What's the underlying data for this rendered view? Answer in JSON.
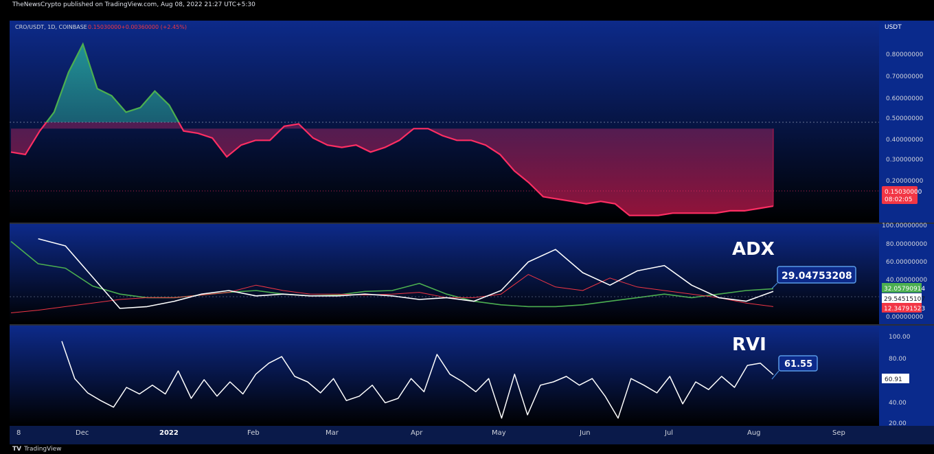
{
  "header": {
    "published": "TheNewsCrypto published on TradingView.com, Aug 08, 2022 21:27 UTC+5:30",
    "symbol": "CRO/USDT, 1D, COINBASE",
    "price": "0.15030000",
    "change": "+0.00360000 (+2.45%)",
    "currency": "USDT"
  },
  "footer": {
    "brand": "TradingView",
    "logo": "TV"
  },
  "colors": {
    "green": "#4caf50",
    "red": "#f23645",
    "pink": "#ff2e63",
    "white": "#ffffff",
    "panel_top": "#0d2a8a",
    "panel_bottom": "#000000",
    "axis_text": "#d1d4dc"
  },
  "chart_data": [
    {
      "type": "area",
      "panel": "price",
      "baseline": 0.48,
      "yticks": [
        "0.80000000",
        "0.70000000",
        "0.60000000",
        "0.50000000",
        "0.40000000",
        "0.30000000",
        "0.20000000"
      ],
      "ylim": [
        0.08,
        0.94
      ],
      "last_price_label": "0.15030000",
      "countdown_label": "08:02:05",
      "x": [
        "Nov 8",
        "Nov 15",
        "Nov 20",
        "Nov 24",
        "Nov 28",
        "Dec 1",
        "Dec 5",
        "Dec 10",
        "Dec 15",
        "Dec 20",
        "Dec 25",
        "Dec 30",
        "Jan 2",
        "Jan 7",
        "Jan 12",
        "Jan 18",
        "Jan 22",
        "Jan 25",
        "Feb 1",
        "Feb 7",
        "Feb 10",
        "Feb 15",
        "Feb 20",
        "Feb 25",
        "Mar 1",
        "Mar 8",
        "Mar 15",
        "Mar 22",
        "Mar 28",
        "Apr 1",
        "Apr 5",
        "Apr 10",
        "Apr 15",
        "Apr 20",
        "Apr 25",
        "May 1",
        "May 5",
        "May 9",
        "May 12",
        "May 16",
        "May 22",
        "May 28",
        "Jun 5",
        "Jun 10",
        "Jun 13",
        "Jun 18",
        "Jun 25",
        "Jul 1",
        "Jul 10",
        "Jul 20",
        "Jul 27",
        "Aug 1",
        "Aug 5",
        "Aug 8"
      ],
      "values": [
        0.38,
        0.37,
        0.47,
        0.55,
        0.72,
        0.84,
        0.65,
        0.62,
        0.55,
        0.57,
        0.64,
        0.58,
        0.47,
        0.46,
        0.44,
        0.36,
        0.41,
        0.43,
        0.43,
        0.49,
        0.5,
        0.44,
        0.41,
        0.4,
        0.41,
        0.38,
        0.4,
        0.43,
        0.48,
        0.48,
        0.45,
        0.43,
        0.43,
        0.41,
        0.37,
        0.3,
        0.25,
        0.19,
        0.18,
        0.17,
        0.16,
        0.17,
        0.16,
        0.11,
        0.11,
        0.11,
        0.12,
        0.12,
        0.12,
        0.12,
        0.13,
        0.13,
        0.14,
        0.15
      ],
      "series": [
        {
          "name": "CRO/USDT, 1D, COINBASE"
        }
      ]
    },
    {
      "type": "line",
      "panel": "adx",
      "title": "ADX",
      "yticks": [
        "100.00000000",
        "80.00000000",
        "60.00000000",
        "40.00000000",
        "0.00000000"
      ],
      "ylim": [
        0,
        100
      ],
      "callout": "29.04753208",
      "labels": [
        "32.05790914",
        "29.54515107",
        "12.34791523"
      ],
      "x": [
        "Nov 8",
        "Nov 15",
        "Nov 22",
        "Dec 1",
        "Dec 10",
        "Dec 20",
        "Jan 1",
        "Jan 10",
        "Jan 20",
        "Feb 1",
        "Feb 10",
        "Feb 20",
        "Mar 1",
        "Mar 10",
        "Mar 20",
        "Apr 1",
        "Apr 10",
        "Apr 20",
        "May 1",
        "May 10",
        "May 20",
        "Jun 1",
        "Jun 10",
        "Jun 20",
        "Jul 1",
        "Jul 10",
        "Jul 20",
        "Aug 1",
        "Aug 8"
      ],
      "series": [
        {
          "values": [
            85,
            60,
            55,
            35,
            26,
            22,
            22,
            25,
            28,
            30,
            26,
            24,
            25,
            29,
            30,
            38,
            26,
            18,
            14,
            12,
            12,
            14,
            18,
            22,
            26,
            22,
            26,
            30,
            32
          ]
        },
        {
          "values": [
            5,
            8,
            12,
            16,
            20,
            22,
            22,
            25,
            28,
            36,
            30,
            26,
            26,
            25,
            26,
            28,
            22,
            22,
            26,
            48,
            34,
            30,
            44,
            34,
            30,
            26,
            22,
            16,
            12
          ]
        },
        {
          "values": [
            null,
            88,
            80,
            45,
            10,
            12,
            18,
            26,
            30,
            24,
            26,
            24,
            24,
            26,
            24,
            20,
            22,
            18,
            30,
            62,
            76,
            50,
            36,
            52,
            58,
            36,
            22,
            18,
            29
          ]
        }
      ]
    },
    {
      "type": "line",
      "panel": "rvi",
      "title": "RVI",
      "yticks": [
        "100.00",
        "80.00",
        "60.00",
        "40.00",
        "20.00"
      ],
      "ylim": [
        15,
        105
      ],
      "callout": "61.55",
      "last_label": "60.91",
      "x": [
        "Nov 20",
        "Nov 22",
        "Nov 25",
        "Nov 28",
        "Dec 1",
        "Dec 5",
        "Dec 10",
        "Dec 15",
        "Dec 20",
        "Dec 25",
        "Dec 30",
        "Jan 5",
        "Jan 10",
        "Jan 15",
        "Jan 20",
        "Jan 25",
        "Feb 1",
        "Feb 5",
        "Feb 10",
        "Feb 15",
        "Feb 20",
        "Feb 25",
        "Mar 1",
        "Mar 5",
        "Mar 10",
        "Mar 15",
        "Mar 20",
        "Mar 25",
        "Apr 1",
        "Apr 5",
        "Apr 10",
        "Apr 15",
        "Apr 20",
        "Apr 25",
        "May 1",
        "May 5",
        "May 10",
        "May 15",
        "May 20",
        "May 25",
        "Jun 1",
        "Jun 5",
        "Jun 10",
        "Jun 13",
        "Jun 17",
        "Jun 20",
        "Jun 25",
        "Jul 1",
        "Jul 5",
        "Jul 10",
        "Jul 15",
        "Jul 20",
        "Jul 25",
        "Aug 1",
        "Aug 4",
        "Aug 8"
      ],
      "values": [
        92,
        58,
        45,
        38,
        32,
        50,
        44,
        52,
        44,
        65,
        40,
        57,
        42,
        55,
        44,
        62,
        72,
        78,
        60,
        55,
        45,
        58,
        38,
        42,
        52,
        36,
        40,
        58,
        46,
        80,
        62,
        55,
        46,
        58,
        22,
        62,
        25,
        52,
        55,
        60,
        52,
        58,
        42,
        22,
        58,
        52,
        45,
        60,
        35,
        55,
        48,
        60,
        50,
        70,
        72,
        61.55
      ]
    }
  ],
  "xaxis": {
    "ticks": [
      "8",
      "Dec",
      "2022",
      "Feb",
      "Mar",
      "Apr",
      "May",
      "Jun",
      "Jul",
      "Aug",
      "Sep"
    ]
  }
}
